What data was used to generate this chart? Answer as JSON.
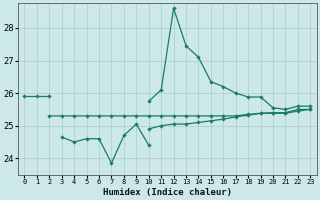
{
  "xlabel": "Humidex (Indice chaleur)",
  "bg_color": "#cce8e8",
  "line_color": "#1a7a6e",
  "grid_color": "#aacccc",
  "ylim": [
    23.5,
    28.75
  ],
  "yticks": [
    24,
    25,
    26,
    27,
    28
  ],
  "xlim": [
    -0.5,
    23.5
  ],
  "humidex_main": [
    25.9,
    25.9,
    25.9,
    null,
    null,
    null,
    null,
    null,
    null,
    null,
    25.75,
    26.1,
    28.6,
    27.45,
    27.1,
    26.35,
    26.2,
    26.0,
    25.88,
    25.88,
    25.55,
    25.5,
    25.6,
    25.6
  ],
  "humidex_flat": [
    null,
    null,
    25.3,
    25.3,
    25.3,
    25.3,
    25.3,
    25.3,
    25.3,
    25.3,
    25.3,
    25.3,
    25.3,
    25.3,
    25.3,
    25.3,
    25.3,
    25.3,
    25.35,
    25.38,
    25.4,
    25.4,
    25.5,
    25.5
  ],
  "humidex_low": [
    null,
    null,
    null,
    24.65,
    24.5,
    24.6,
    24.6,
    23.85,
    24.7,
    25.05,
    24.4,
    null,
    null,
    null,
    null,
    null,
    null,
    null,
    null,
    null,
    null,
    null,
    null,
    null
  ],
  "humidex_rise": [
    null,
    null,
    null,
    null,
    null,
    null,
    null,
    null,
    null,
    null,
    24.9,
    25.0,
    25.05,
    25.05,
    25.1,
    25.15,
    25.2,
    25.27,
    25.32,
    25.38,
    25.38,
    25.38,
    25.45,
    25.5
  ]
}
